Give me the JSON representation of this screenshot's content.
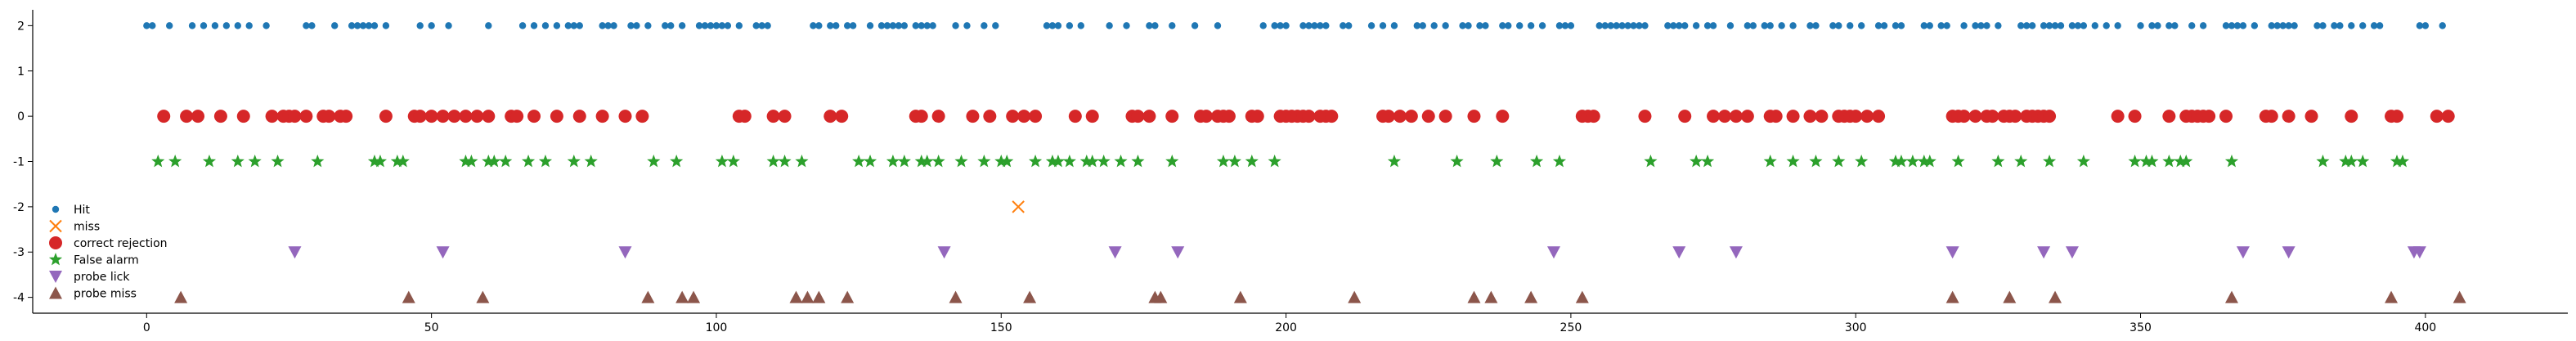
{
  "chart_data": {
    "type": "scatter",
    "title": "",
    "xlabel": "",
    "ylabel": "",
    "xlim": [
      -20,
      425
    ],
    "ylim": [
      -4.35,
      2.35
    ],
    "x_ticks": [
      0,
      50,
      100,
      150,
      200,
      250,
      300,
      350,
      400
    ],
    "y_ticks": [
      2,
      1,
      0,
      -1,
      -2,
      -3,
      -4
    ],
    "grid": false,
    "legend_position": "lower-left",
    "series": [
      {
        "name": "Hit",
        "marker": "circle-small",
        "color": "#1f77b4",
        "y": 2,
        "x": [
          0,
          1,
          4,
          8,
          10,
          12,
          14,
          16,
          18,
          21,
          28,
          29,
          33,
          36,
          37,
          38,
          39,
          40,
          42,
          48,
          50,
          53,
          60,
          66,
          68,
          70,
          72,
          74,
          75,
          76,
          80,
          81,
          82,
          85,
          86,
          88,
          91,
          92,
          94,
          97,
          98,
          99,
          100,
          101,
          102,
          104,
          107,
          108,
          109,
          117,
          118,
          120,
          121,
          123,
          124,
          127,
          129,
          130,
          131,
          132,
          133,
          135,
          136,
          137,
          138,
          142,
          144,
          147,
          149,
          158,
          159,
          160,
          162,
          164,
          169,
          172,
          176,
          177,
          180,
          184,
          188,
          196,
          198,
          199,
          200,
          203,
          204,
          205,
          206,
          207,
          210,
          211,
          215,
          217,
          219,
          223,
          224,
          226,
          228,
          231,
          232,
          234,
          235,
          238,
          239,
          241,
          243,
          245,
          248,
          249,
          250,
          255,
          256,
          257,
          258,
          259,
          260,
          261,
          262,
          263,
          267,
          268,
          269,
          270,
          272,
          274,
          275,
          278,
          281,
          282,
          284,
          285,
          287,
          289,
          292,
          293,
          296,
          297,
          299,
          301,
          304,
          305,
          307,
          308,
          312,
          313,
          315,
          316,
          319,
          321,
          322,
          323,
          325,
          329,
          330,
          331,
          333,
          334,
          335,
          336,
          338,
          339,
          340,
          342,
          344,
          346,
          350,
          352,
          353,
          355,
          356,
          359,
          361,
          365,
          366,
          367,
          368,
          370,
          373,
          374,
          375,
          376,
          377,
          381,
          382,
          384,
          385,
          387,
          389,
          391,
          392,
          399,
          400,
          403
        ]
      },
      {
        "name": "miss",
        "marker": "x",
        "color": "#ff7f0e",
        "y": -2,
        "x": [
          153
        ]
      },
      {
        "name": "correct rejection",
        "marker": "circle-large",
        "color": "#d62728",
        "y": 0,
        "x": [
          3,
          7,
          9,
          13,
          17,
          22,
          24,
          25,
          26,
          28,
          31,
          32,
          34,
          35,
          42,
          47,
          48,
          50,
          52,
          54,
          56,
          58,
          60,
          64,
          65,
          68,
          72,
          76,
          80,
          84,
          87,
          104,
          105,
          110,
          112,
          120,
          122,
          135,
          136,
          139,
          145,
          148,
          152,
          154,
          156,
          163,
          166,
          173,
          174,
          176,
          180,
          185,
          186,
          188,
          189,
          190,
          194,
          195,
          199,
          200,
          201,
          202,
          203,
          204,
          206,
          207,
          208,
          217,
          218,
          220,
          222,
          225,
          228,
          233,
          238,
          252,
          253,
          254,
          263,
          270,
          275,
          277,
          279,
          281,
          285,
          286,
          289,
          292,
          294,
          297,
          298,
          299,
          300,
          302,
          304,
          317,
          318,
          319,
          321,
          323,
          324,
          326,
          327,
          328,
          330,
          331,
          332,
          333,
          334,
          346,
          349,
          355,
          358,
          359,
          360,
          361,
          362,
          365,
          372,
          373,
          376,
          380,
          387,
          394,
          395,
          402,
          404
        ]
      },
      {
        "name": "False alarm",
        "marker": "star",
        "color": "#2ca02c",
        "y": -1,
        "x": [
          2,
          5,
          11,
          16,
          19,
          23,
          30,
          40,
          41,
          44,
          45,
          56,
          57,
          60,
          61,
          63,
          67,
          70,
          75,
          78,
          89,
          93,
          101,
          103,
          110,
          112,
          115,
          125,
          127,
          131,
          133,
          136,
          137,
          139,
          143,
          147,
          150,
          151,
          156,
          159,
          160,
          162,
          165,
          166,
          168,
          171,
          174,
          180,
          189,
          191,
          194,
          198,
          219,
          230,
          237,
          244,
          248,
          264,
          272,
          274,
          285,
          289,
          293,
          297,
          301,
          307,
          308,
          310,
          312,
          313,
          318,
          325,
          329,
          334,
          340,
          349,
          351,
          352,
          355,
          357,
          358,
          366,
          382,
          386,
          387,
          389,
          395,
          396
        ]
      },
      {
        "name": "probe lick",
        "marker": "triangle-down",
        "color": "#9467bd",
        "y": -3,
        "x": [
          26,
          52,
          84,
          140,
          170,
          181,
          247,
          269,
          279,
          317,
          333,
          338,
          368,
          376,
          398,
          399
        ]
      },
      {
        "name": "probe miss",
        "marker": "triangle-up",
        "color": "#8c564b",
        "y": -4,
        "x": [
          6,
          46,
          59,
          88,
          94,
          96,
          114,
          116,
          118,
          123,
          142,
          155,
          177,
          178,
          192,
          212,
          233,
          236,
          243,
          252,
          317,
          327,
          335,
          366,
          394,
          406
        ]
      }
    ]
  }
}
